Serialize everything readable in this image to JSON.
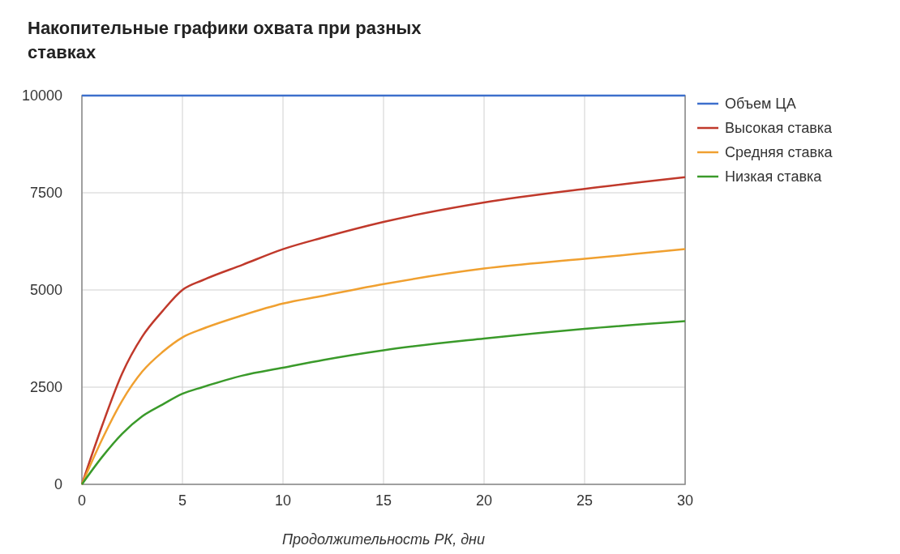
{
  "chart_data": {
    "type": "line",
    "title": "Накопительные графики охвата при разных ставках",
    "xlabel": "Продолжительность РК, дни",
    "x": [
      0,
      1,
      2,
      3,
      4,
      5,
      6,
      8,
      10,
      12,
      15,
      20,
      25,
      30
    ],
    "xlim": [
      0,
      30
    ],
    "xticks": [
      0,
      5,
      10,
      15,
      20,
      25,
      30
    ],
    "ylim": [
      0,
      10000
    ],
    "yticks": [
      0,
      2500,
      5000,
      7500,
      10000
    ],
    "grid": true,
    "legend": "top right",
    "series": [
      {
        "name": "Объем ЦА",
        "color": "#3d6fcc",
        "values": [
          10000,
          10000,
          10000,
          10000,
          10000,
          10000,
          10000,
          10000,
          10000,
          10000,
          10000,
          10000,
          10000,
          10000
        ]
      },
      {
        "name": "Высокая ставка",
        "color": "#c0392b",
        "values": [
          0,
          1500,
          2850,
          3800,
          4450,
          5000,
          5250,
          5650,
          6050,
          6350,
          6750,
          7250,
          7600,
          7900
        ]
      },
      {
        "name": "Средняя ставка",
        "color": "#f0a030",
        "values": [
          0,
          1150,
          2150,
          2900,
          3400,
          3780,
          4000,
          4350,
          4650,
          4850,
          5150,
          5550,
          5800,
          6050
        ]
      },
      {
        "name": "Низкая ставка",
        "color": "#3a9a2a",
        "values": [
          0,
          700,
          1300,
          1750,
          2050,
          2330,
          2500,
          2800,
          3000,
          3200,
          3450,
          3750,
          4000,
          4200
        ]
      }
    ]
  }
}
